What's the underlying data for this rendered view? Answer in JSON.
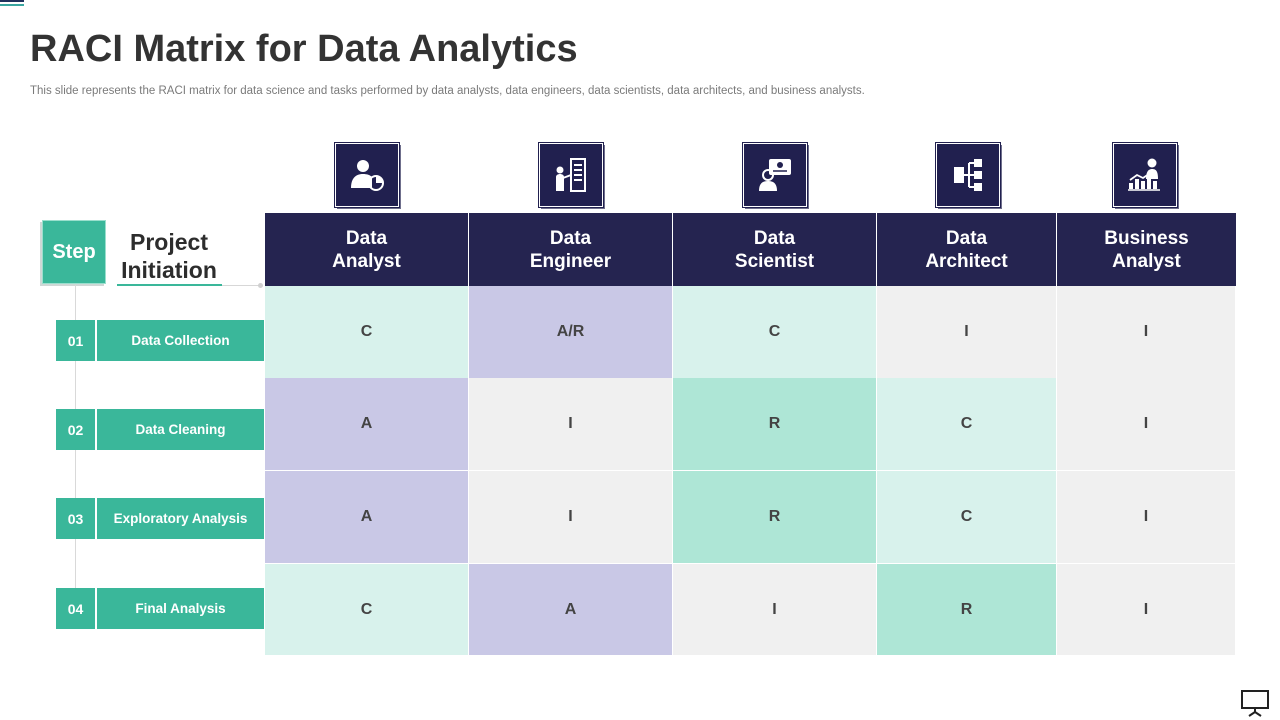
{
  "title": "RACI Matrix for Data Analytics",
  "subtitle": "This slide represents the RACI matrix for data science and tasks performed by data analysts, data engineers, data scientists, data architects, and business analysts.",
  "step_label": "Step",
  "stage": {
    "line1": "Project",
    "line2": "Initiation"
  },
  "steps": [
    {
      "num": "01",
      "label": "Data Collection"
    },
    {
      "num": "02",
      "label": "Data Cleaning"
    },
    {
      "num": "03",
      "label": "Exploratory Analysis"
    },
    {
      "num": "04",
      "label": "Final Analysis"
    }
  ],
  "roles": [
    {
      "line1": "Data",
      "line2": "Analyst",
      "icon": "analyst-chart-icon"
    },
    {
      "line1": "Data",
      "line2": "Engineer",
      "icon": "server-engineer-icon"
    },
    {
      "line1": "Data",
      "line2": "Scientist",
      "icon": "scientist-screen-icon"
    },
    {
      "line1": "Data",
      "line2": "Architect",
      "icon": "architecture-hierarchy-icon"
    },
    {
      "line1": "Business",
      "line2": "Analyst",
      "icon": "business-growth-icon"
    }
  ],
  "matrix": [
    [
      "C",
      "A/R",
      "C",
      "I",
      "I"
    ],
    [
      "A",
      "I",
      "R",
      "C",
      "I"
    ],
    [
      "A",
      "I",
      "R",
      "C",
      "I"
    ],
    [
      "C",
      "A",
      "I",
      "R",
      "I"
    ]
  ],
  "cell_colors": {
    "A": "#c9c8e6",
    "A/R": "#c9c8e6",
    "C": "#d8f2ec",
    "R": "#aee6d6",
    "I": "#f0f0f0"
  },
  "colors": {
    "navy": "#252450",
    "teal": "#3ab79a"
  }
}
